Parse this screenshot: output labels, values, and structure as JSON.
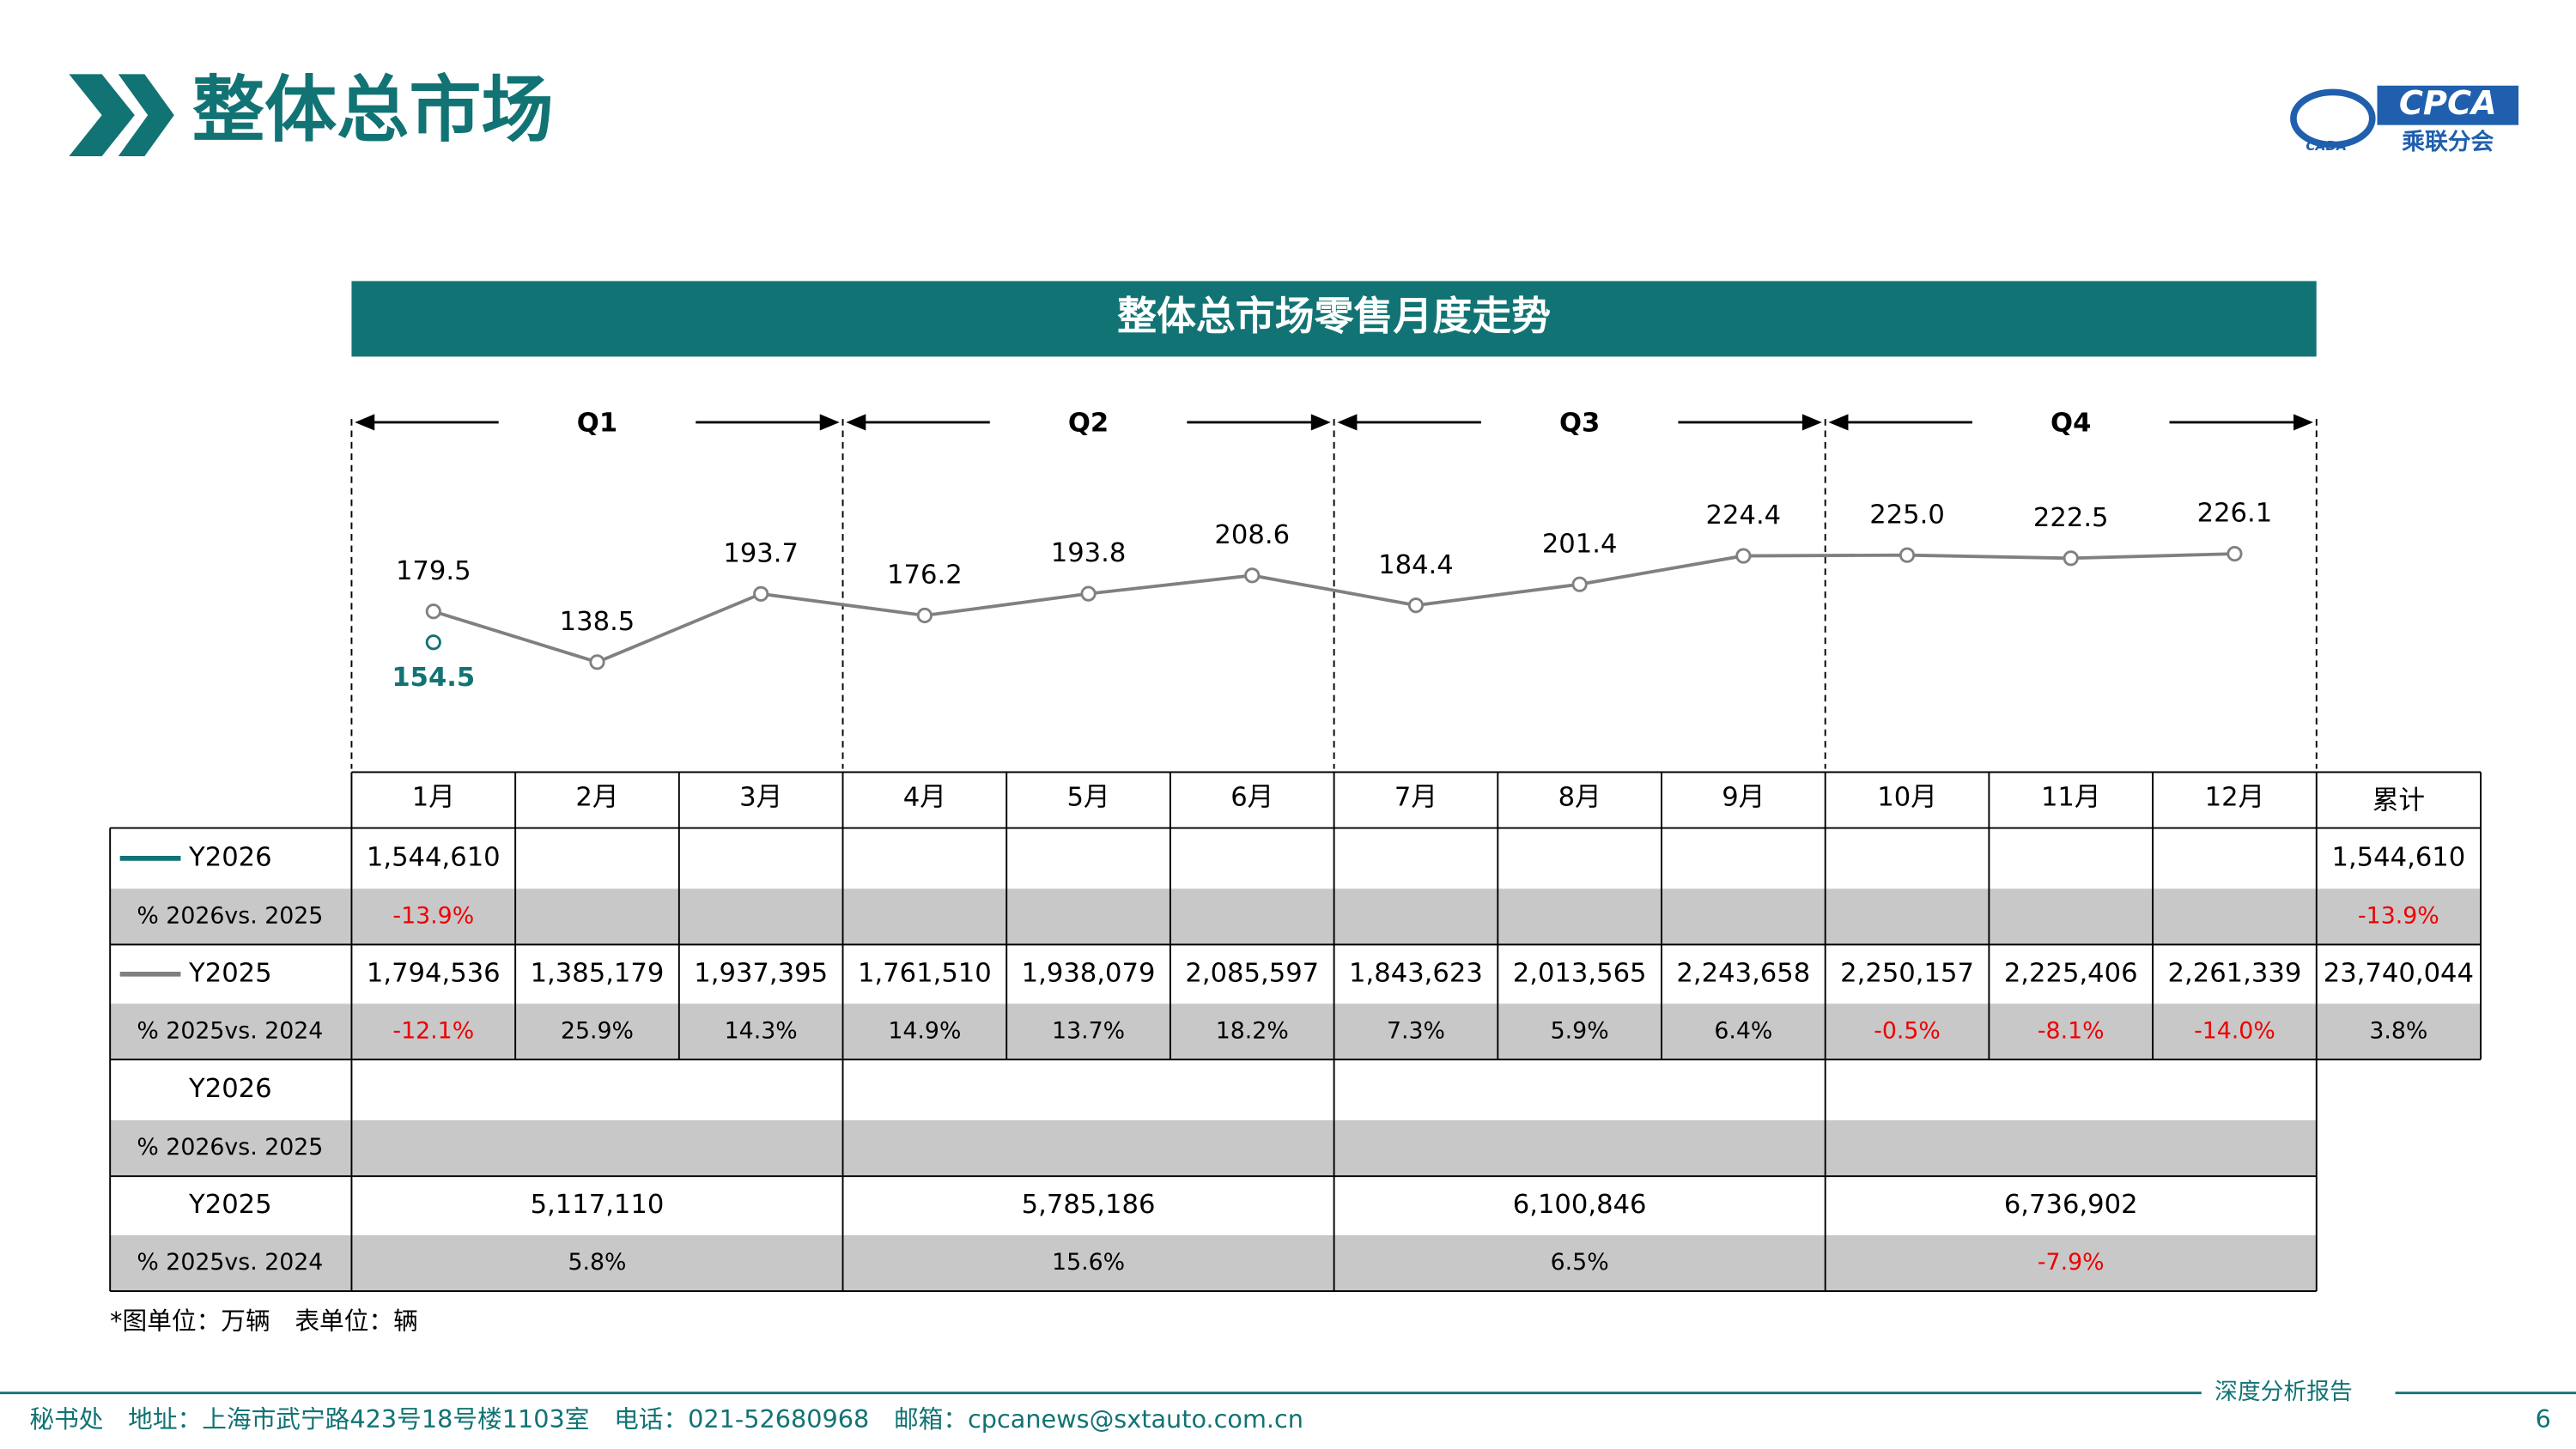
{
  "header": {
    "title": "整体总市场",
    "logo_text": "CPCA",
    "logo_sub": "乘联分会",
    "logo_small": "CADA"
  },
  "chart_data": {
    "type": "line",
    "title": "整体总市场零售月度走势",
    "quarters": [
      "Q1",
      "Q2",
      "Q3",
      "Q4"
    ],
    "categories": [
      "1月",
      "2月",
      "3月",
      "4月",
      "5月",
      "6月",
      "7月",
      "8月",
      "9月",
      "10月",
      "11月",
      "12月"
    ],
    "series": [
      {
        "name": "Y2026",
        "color": "#127374",
        "values": [
          154.5,
          null,
          null,
          null,
          null,
          null,
          null,
          null,
          null,
          null,
          null,
          null
        ],
        "value_labels": [
          "154.5",
          null,
          null,
          null,
          null,
          null,
          null,
          null,
          null,
          null,
          null,
          null
        ]
      },
      {
        "name": "Y2025",
        "color": "#808080",
        "values": [
          179.5,
          138.5,
          193.7,
          176.2,
          193.8,
          208.6,
          184.4,
          201.4,
          224.4,
          225.0,
          222.5,
          226.1
        ],
        "value_labels": [
          "179.5",
          "138.5",
          "193.7",
          "176.2",
          "193.8",
          "208.6",
          "184.4",
          "201.4",
          "224.4",
          "225.0",
          "222.5",
          "226.1"
        ]
      }
    ]
  },
  "table": {
    "total_header": "累计",
    "monthly_rows": [
      {
        "cells": [
          "1,544,610",
          null,
          null,
          null,
          null,
          null,
          null,
          null,
          null,
          null,
          null,
          null
        ],
        "total": "1,544,610"
      },
      {
        "label": "% 2026vs. 2025",
        "cells": [
          "-13.9%",
          null,
          null,
          null,
          null,
          null,
          null,
          null,
          null,
          null,
          null,
          null
        ],
        "total": "-13.9%"
      },
      {
        "cells": [
          "1,794,536",
          "1,385,179",
          "1,937,395",
          "1,761,510",
          "1,938,079",
          "2,085,597",
          "1,843,623",
          "2,013,565",
          "2,243,658",
          "2,250,157",
          "2,225,406",
          "2,261,339"
        ],
        "total": "23,740,044"
      },
      {
        "label": "% 2025vs. 2024",
        "cells": [
          "-12.1%",
          "25.9%",
          "14.3%",
          "14.9%",
          "13.7%",
          "18.2%",
          "7.3%",
          "5.9%",
          "6.4%",
          "-0.5%",
          "-8.1%",
          "-14.0%"
        ],
        "total": "3.8%"
      }
    ],
    "quarterly_rows": [
      {
        "label": "Y2026",
        "cells": [
          null,
          null,
          null,
          null
        ]
      },
      {
        "label": "% 2026vs. 2025",
        "cells": [
          null,
          null,
          null,
          null
        ]
      },
      {
        "label": "Y2025",
        "cells": [
          "5,117,110",
          "5,785,186",
          "6,100,846",
          "6,736,902"
        ]
      },
      {
        "label": "% 2025vs. 2024",
        "cells": [
          "5.8%",
          "15.6%",
          "6.5%",
          "-7.9%"
        ]
      }
    ]
  },
  "note": "*图单位：万辆　表单位：辆",
  "footer": {
    "address": "秘书处　地址：上海市武宁路423号18号楼1103室　电话：021-52680968　邮箱：cpcanews@sxtauto.com.cn",
    "report": "深度分析报告",
    "page": "6"
  }
}
